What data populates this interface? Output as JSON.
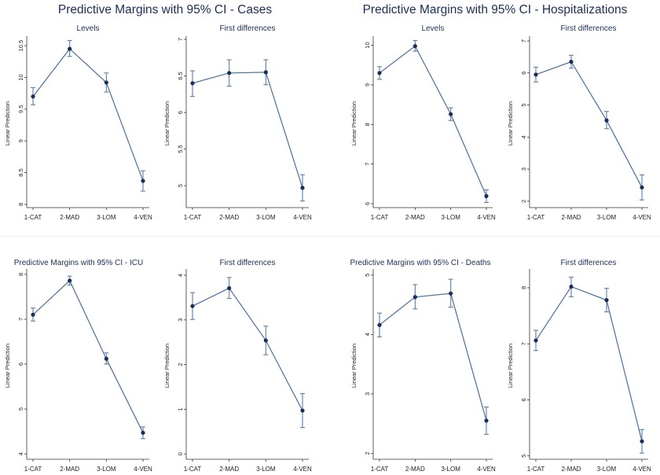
{
  "headings": {
    "cases": "Predictive Margins with 95% CI - Cases",
    "hospitalizations": "Predictive Margins with 95% CI - Hospitalizations"
  },
  "colors": {
    "line": "#4a6f9c",
    "point": "#1a2e5a",
    "title": "#1a2e5a"
  },
  "chart_data": [
    {
      "type": "line",
      "group": "Cases",
      "title": "Levels",
      "ylabel": "Linear Prediction",
      "categories": [
        "1-CAT",
        "2-MAD",
        "3-LOM",
        "4-VEN"
      ],
      "values": [
        9.7,
        10.45,
        9.92,
        8.37
      ],
      "ci_low": [
        9.57,
        10.33,
        9.77,
        8.21
      ],
      "ci_high": [
        9.84,
        10.58,
        10.07,
        8.53
      ],
      "ylim": [
        7.95,
        10.6
      ],
      "yticks": [
        "8",
        "8.5",
        "9",
        "9.5",
        "10",
        "10.5"
      ]
    },
    {
      "type": "line",
      "group": "Cases",
      "title": "First differences",
      "ylabel": "Linear Prediction",
      "categories": [
        "1-CAT",
        "2-MAD",
        "3-LOM",
        "4-VEN"
      ],
      "values": [
        6.4,
        6.54,
        6.55,
        4.97
      ],
      "ci_low": [
        6.22,
        6.36,
        6.38,
        4.79
      ],
      "ci_high": [
        6.57,
        6.72,
        6.72,
        5.15
      ],
      "ylim": [
        4.7,
        7.0
      ],
      "yticks": [
        "5",
        "5.5",
        "6",
        "6.5",
        "7"
      ]
    },
    {
      "type": "line",
      "group": "Hospitalizations",
      "title": "Levels",
      "ylabel": "Linear Prediction",
      "categories": [
        "1-CAT",
        "2-MAD",
        "3-LOM",
        "4-VEN"
      ],
      "values": [
        9.3,
        9.98,
        8.26,
        6.19
      ],
      "ci_low": [
        9.14,
        9.85,
        8.1,
        6.03
      ],
      "ci_high": [
        9.46,
        10.12,
        8.42,
        6.35
      ],
      "ylim": [
        5.9,
        10.15
      ],
      "yticks": [
        "6",
        "7",
        "8",
        "9",
        "10"
      ]
    },
    {
      "type": "line",
      "group": "Hospitalizations",
      "title": "First differences",
      "ylabel": "Linear Prediction",
      "categories": [
        "1-CAT",
        "2-MAD",
        "3-LOM",
        "4-VEN"
      ],
      "values": [
        5.95,
        6.35,
        4.52,
        2.43
      ],
      "ci_low": [
        5.72,
        6.15,
        4.26,
        2.04
      ],
      "ci_high": [
        6.18,
        6.55,
        4.8,
        2.82
      ],
      "ylim": [
        1.8,
        7.05
      ],
      "yticks": [
        "2",
        "3",
        "4",
        "5",
        "6",
        "7"
      ]
    },
    {
      "type": "line",
      "group": "ICU",
      "title": "Predictive Margins with 95% CI - ICU",
      "ylabel": "Linear Prediction",
      "categories": [
        "1-CAT",
        "2-MAD",
        "3-LOM",
        "4-VEN"
      ],
      "values": [
        7.1,
        7.86,
        6.12,
        4.47
      ],
      "ci_low": [
        6.96,
        7.76,
        6.0,
        4.34
      ],
      "ci_high": [
        7.25,
        7.96,
        6.25,
        4.6
      ],
      "ylim": [
        3.88,
        8.05
      ],
      "yticks": [
        "4",
        "5",
        "6",
        "7",
        "8"
      ]
    },
    {
      "type": "line",
      "group": "ICU",
      "title": "First differences",
      "ylabel": "Linear Prediction",
      "categories": [
        "1-CAT",
        "2-MAD",
        "3-LOM",
        "4-VEN"
      ],
      "values": [
        3.31,
        3.71,
        2.54,
        0.97
      ],
      "ci_low": [
        3.01,
        3.48,
        2.22,
        0.59
      ],
      "ci_high": [
        3.61,
        3.95,
        2.86,
        1.35
      ],
      "ylim": [
        -0.12,
        4.07
      ],
      "yticks": [
        "0",
        "1",
        "2",
        "3",
        "4"
      ]
    },
    {
      "type": "line",
      "group": "Deaths",
      "title": "Predictive Margins with 95% CI - Deaths",
      "ylabel": "Linear Prediction",
      "categories": [
        "1-CAT",
        "2-MAD",
        "3-LOM",
        "4-VEN"
      ],
      "values": [
        4.16,
        4.63,
        4.69,
        2.55
      ],
      "ci_low": [
        3.96,
        4.43,
        4.46,
        2.32
      ],
      "ci_high": [
        4.36,
        4.84,
        4.93,
        2.78
      ],
      "ylim": [
        1.9,
        5.05
      ],
      "yticks": [
        "2",
        "3",
        "4",
        "5"
      ]
    },
    {
      "type": "line",
      "group": "Deaths",
      "title": "First differences",
      "ylabel": "Linear Prediction",
      "categories": [
        "1-CAT",
        "2-MAD",
        "3-LOM",
        "4-VEN"
      ],
      "values": [
        7.06,
        8.02,
        7.78,
        5.26
      ],
      "ci_low": [
        6.88,
        7.84,
        7.57,
        5.05
      ],
      "ci_high": [
        7.24,
        8.19,
        7.99,
        5.47
      ],
      "ylim": [
        4.94,
        8.28
      ],
      "yticks": [
        "5",
        "6",
        "7",
        "8"
      ]
    }
  ]
}
